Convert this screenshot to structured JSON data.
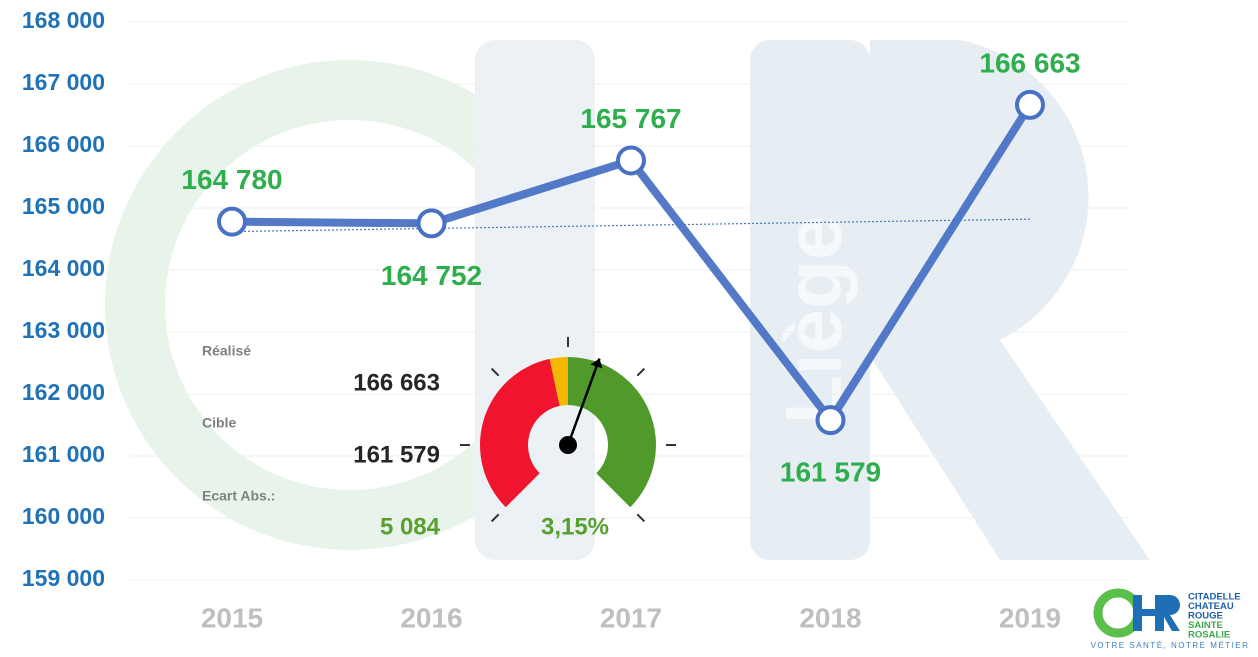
{
  "chart_data": {
    "type": "line",
    "categories": [
      "2015",
      "2016",
      "2017",
      "2018",
      "2019"
    ],
    "series": [
      {
        "name": "Réalisé",
        "color": "#4a72c4",
        "values": [
          164780,
          164752,
          165767,
          161579,
          166663
        ],
        "value_labels": [
          "164 780",
          "164 752",
          "165 767",
          "161 579",
          "166 663"
        ]
      }
    ],
    "trendline": [
      164620,
      164820
    ],
    "ylim": [
      159000,
      168000
    ],
    "yticks": [
      {
        "value": 159000,
        "label": "159 000"
      },
      {
        "value": 160000,
        "label": "160 000"
      },
      {
        "value": 161000,
        "label": "161 000"
      },
      {
        "value": 162000,
        "label": "162 000"
      },
      {
        "value": 163000,
        "label": "163 000"
      },
      {
        "value": 164000,
        "label": "164 000"
      },
      {
        "value": 165000,
        "label": "165 000"
      },
      {
        "value": 166000,
        "label": "166 000"
      },
      {
        "value": 167000,
        "label": "167 000"
      },
      {
        "value": 168000,
        "label": "168 000"
      }
    ],
    "grid": true
  },
  "summary": {
    "realise_label": "Réalisé",
    "realise_value": "166 663",
    "cible_label": "Cible",
    "cible_value": "161 579",
    "ecart_label": "Ecart Abs.:",
    "ecart_value": "5 084",
    "ecart_percent": "3,15%"
  },
  "watermark": "Liège",
  "logo": {
    "lines": [
      "CITADELLE",
      "CHATEAU",
      "ROUGE",
      "SAINTE",
      "ROSALIE"
    ],
    "tagline": "VOTRE SANTÉ, NOTRE MÉTIER"
  }
}
